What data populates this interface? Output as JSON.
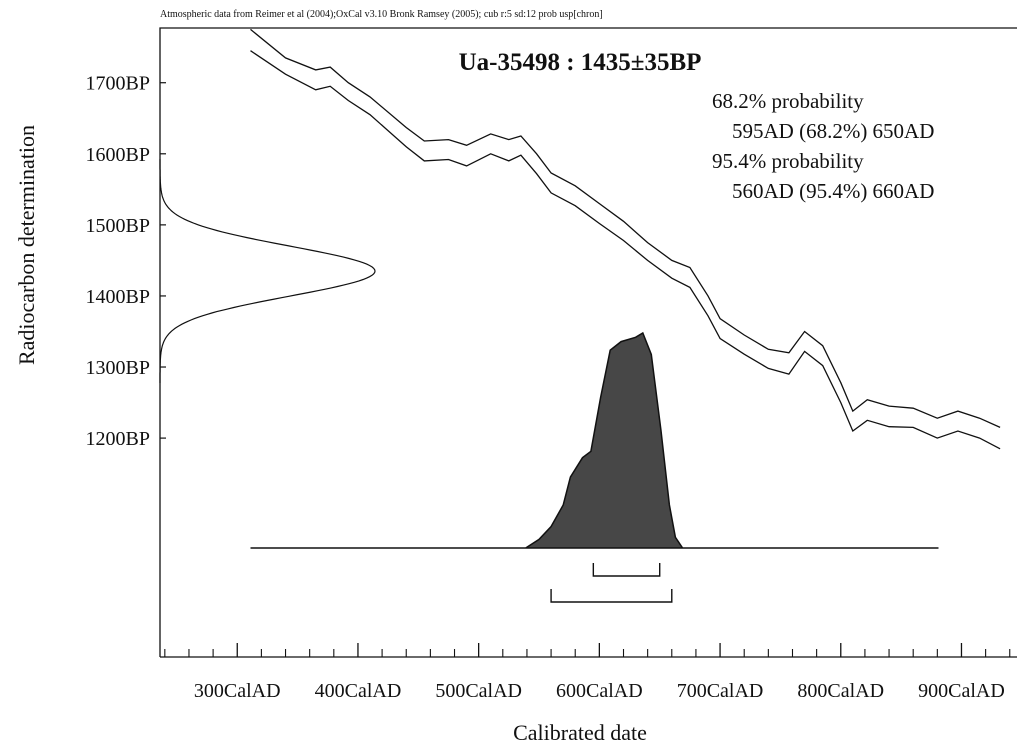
{
  "chart_data": {
    "type": "calibration",
    "header": "Atmospheric data from Reimer et al (2004);OxCal v3.10 Bronk Ramsey (2005); cub r:5 sd:12 prob usp[chron]",
    "title": "Ua-35498 : 1435±35BP",
    "xlabel": "Calibrated date",
    "ylabel": "Radiocarbon determination",
    "xlim": [
      236,
      946
    ],
    "ylim": [
      892,
      1777
    ],
    "xticks": [
      {
        "value": 300,
        "label": "300CalAD"
      },
      {
        "value": 400,
        "label": "400CalAD"
      },
      {
        "value": 500,
        "label": "500CalAD"
      },
      {
        "value": 600,
        "label": "600CalAD"
      },
      {
        "value": 700,
        "label": "700CalAD"
      },
      {
        "value": 800,
        "label": "800CalAD"
      },
      {
        "value": 900,
        "label": "900CalAD"
      }
    ],
    "xminorticks": [
      240,
      260,
      280,
      320,
      340,
      360,
      380,
      420,
      440,
      460,
      480,
      520,
      540,
      560,
      580,
      620,
      640,
      660,
      680,
      720,
      740,
      760,
      780,
      820,
      840,
      860,
      880,
      920,
      940
    ],
    "yticks": [
      {
        "value": 1200,
        "label": "1200BP"
      },
      {
        "value": 1300,
        "label": "1300BP"
      },
      {
        "value": 1400,
        "label": "1400BP"
      },
      {
        "value": 1500,
        "label": "1500BP"
      },
      {
        "value": 1600,
        "label": "1600BP"
      },
      {
        "value": 1700,
        "label": "1700BP"
      }
    ],
    "measurement": {
      "mean": 1435,
      "error": 35
    },
    "curve": {
      "x": [
        311,
        340,
        365,
        377,
        392,
        410,
        440,
        455,
        475,
        490,
        510,
        525,
        535,
        548,
        560,
        580,
        600,
        620,
        640,
        660,
        675,
        690,
        700,
        720,
        740,
        757,
        770,
        785,
        800,
        810,
        822,
        840,
        860,
        880,
        897,
        915,
        932
      ],
      "upper": [
        1775,
        1735,
        1718,
        1722,
        1700,
        1680,
        1637,
        1618,
        1620,
        1612,
        1628,
        1620,
        1625,
        1600,
        1573,
        1555,
        1530,
        1505,
        1475,
        1450,
        1440,
        1400,
        1368,
        1345,
        1325,
        1320,
        1350,
        1330,
        1278,
        1238,
        1254,
        1245,
        1242,
        1228,
        1238,
        1228,
        1215
      ],
      "lower": [
        1745,
        1712,
        1690,
        1695,
        1675,
        1655,
        1610,
        1590,
        1592,
        1583,
        1600,
        1590,
        1598,
        1572,
        1545,
        1527,
        1502,
        1478,
        1450,
        1425,
        1412,
        1372,
        1340,
        1318,
        1298,
        1290,
        1322,
        1302,
        1250,
        1210,
        1225,
        1216,
        1215,
        1200,
        1210,
        1200,
        1185
      ]
    },
    "distribution": {
      "x": [
        311,
        539,
        550,
        560,
        570,
        576,
        586,
        593,
        601,
        609,
        618,
        630,
        636,
        643,
        651,
        658,
        663,
        669,
        881
      ],
      "values": [
        0,
        0,
        0.04,
        0.1,
        0.2,
        0.33,
        0.42,
        0.45,
        0.7,
        0.92,
        0.96,
        0.98,
        1,
        0.9,
        0.55,
        0.2,
        0.05,
        0,
        0
      ]
    },
    "ranges": [
      {
        "label": "68.2% probability",
        "intervals": [
          {
            "text": "595AD (68.2%) 650AD",
            "from": 595,
            "to": 650
          }
        ]
      },
      {
        "label": "95.4% probability",
        "intervals": [
          {
            "text": "560AD (95.4%) 660AD",
            "from": 560,
            "to": 660
          }
        ]
      }
    ]
  }
}
